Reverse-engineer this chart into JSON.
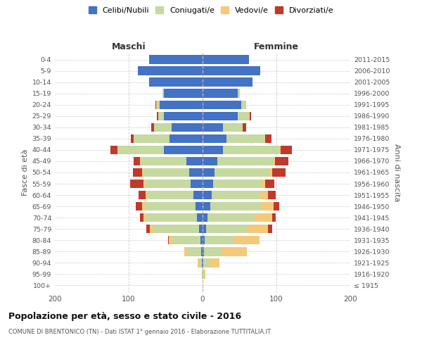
{
  "age_groups": [
    "100+",
    "95-99",
    "90-94",
    "85-89",
    "80-84",
    "75-79",
    "70-74",
    "65-69",
    "60-64",
    "55-59",
    "50-54",
    "45-49",
    "40-44",
    "35-39",
    "30-34",
    "25-29",
    "20-24",
    "15-19",
    "10-14",
    "5-9",
    "0-4"
  ],
  "birth_years": [
    "≤ 1915",
    "1916-1920",
    "1921-1925",
    "1926-1930",
    "1931-1935",
    "1936-1940",
    "1941-1945",
    "1946-1950",
    "1951-1955",
    "1956-1960",
    "1961-1965",
    "1966-1970",
    "1971-1975",
    "1976-1980",
    "1981-1985",
    "1986-1990",
    "1991-1995",
    "1996-2000",
    "2001-2005",
    "2006-2010",
    "2011-2015"
  ],
  "maschi": {
    "celibi": [
      0,
      0,
      1,
      2,
      3,
      5,
      8,
      10,
      12,
      16,
      18,
      22,
      52,
      45,
      42,
      52,
      58,
      52,
      72,
      88,
      72
    ],
    "coniugati": [
      0,
      1,
      4,
      18,
      38,
      62,
      68,
      68,
      62,
      62,
      62,
      62,
      62,
      48,
      24,
      8,
      4,
      2,
      0,
      0,
      0
    ],
    "vedovi": [
      0,
      0,
      2,
      5,
      5,
      4,
      4,
      4,
      3,
      2,
      2,
      1,
      1,
      0,
      0,
      0,
      1,
      0,
      0,
      0,
      0
    ],
    "divorziati": [
      0,
      0,
      0,
      0,
      1,
      5,
      5,
      8,
      10,
      18,
      12,
      8,
      10,
      4,
      4,
      2,
      1,
      0,
      0,
      0,
      0
    ]
  },
  "femmine": {
    "nubili": [
      0,
      0,
      1,
      2,
      3,
      5,
      7,
      10,
      12,
      14,
      16,
      20,
      28,
      32,
      28,
      48,
      52,
      48,
      68,
      78,
      63
    ],
    "coniugate": [
      0,
      2,
      8,
      24,
      40,
      56,
      63,
      70,
      66,
      66,
      74,
      76,
      76,
      53,
      26,
      16,
      7,
      2,
      0,
      0,
      0
    ],
    "vedove": [
      0,
      2,
      14,
      34,
      34,
      28,
      24,
      16,
      11,
      5,
      4,
      2,
      2,
      0,
      0,
      0,
      0,
      0,
      0,
      0,
      0
    ],
    "divorziate": [
      0,
      0,
      0,
      0,
      0,
      5,
      5,
      8,
      10,
      12,
      18,
      18,
      15,
      8,
      5,
      2,
      0,
      0,
      0,
      0,
      0
    ]
  },
  "colors": {
    "celibi": "#4472C4",
    "coniugati": "#C5D9A0",
    "vedovi": "#F5C97A",
    "divorziati": "#C0392B"
  },
  "title": "Popolazione per età, sesso e stato civile - 2016",
  "subtitle": "COMUNE DI BRENTONICO (TN) - Dati ISTAT 1° gennaio 2016 - Elaborazione TUTTITALIA.IT",
  "xlabel_left": "Maschi",
  "xlabel_right": "Femmine",
  "ylabel_left": "Fasce di età",
  "ylabel_right": "Anni di nascita",
  "xlim": 200,
  "legend_labels": [
    "Celibi/Nubili",
    "Coniugati/e",
    "Vedovi/e",
    "Divorziati/e"
  ],
  "bg_color": "#ffffff",
  "grid_color": "#cccccc"
}
